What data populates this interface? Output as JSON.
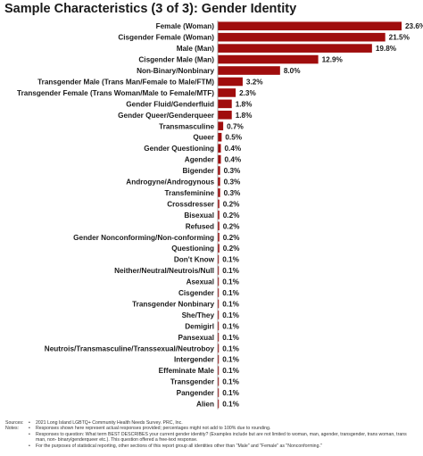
{
  "chart_data": {
    "type": "bar",
    "orientation": "horizontal",
    "title": "Sample Characteristics (3 of 3): Gender Identity",
    "categories": [
      "Female (Woman)",
      "Cisgender Female (Woman)",
      "Male (Man)",
      "Cisgender Male (Man)",
      "Non-Binary/Nonbinary",
      "Transgender Male (Trans Man/Female to Male/FTM)",
      "Transgender Female (Trans Woman/Male to Female/MTF)",
      "Gender Fluid/Genderfluid",
      "Gender Queer/Genderqueer",
      "Transmasculine",
      "Queer",
      "Gender Questioning",
      "Agender",
      "Bigender",
      "Androgyne/Androgynous",
      "Transfeminine",
      "Crossdresser",
      "Bisexual",
      "Refused",
      "Gender Nonconforming/Non-conforming",
      "Questioning",
      "Don't Know",
      "Neither/Neutral/Neutrois/Null",
      "Asexual",
      "Cisgender",
      "Transgender Nonbinary",
      "She/They",
      "Demigirl",
      "Pansexual",
      "Neutrois/Transmasculine/Transsexual/Neutroboy",
      "Intergender",
      "Effeminate Male",
      "Transgender",
      "Pangender",
      "Alien"
    ],
    "values": [
      23.6,
      21.5,
      19.8,
      12.9,
      8.0,
      3.2,
      2.3,
      1.8,
      1.8,
      0.7,
      0.5,
      0.4,
      0.4,
      0.3,
      0.3,
      0.3,
      0.2,
      0.2,
      0.2,
      0.2,
      0.2,
      0.1,
      0.1,
      0.1,
      0.1,
      0.1,
      0.1,
      0.1,
      0.1,
      0.1,
      0.1,
      0.1,
      0.1,
      0.1,
      0.1
    ],
    "value_labels": [
      "23.6%",
      "21.5%",
      "19.8%",
      "12.9%",
      "8.0%",
      "3.2%",
      "2.3%",
      "1.8%",
      "1.8%",
      "0.7%",
      "0.5%",
      "0.4%",
      "0.4%",
      "0.3%",
      "0.3%",
      "0.3%",
      "0.2%",
      "0.2%",
      "0.2%",
      "0.2%",
      "0.2%",
      "0.1%",
      "0.1%",
      "0.1%",
      "0.1%",
      "0.1%",
      "0.1%",
      "0.1%",
      "0.1%",
      "0.1%",
      "0.1%",
      "0.1%",
      "0.1%",
      "0.1%",
      "0.1%"
    ],
    "unit": "%",
    "bar_color": "#a00d0d",
    "axis_line_color": "#999999",
    "xlim": [
      0,
      23.6
    ],
    "grid": false,
    "legend": false
  },
  "notes": {
    "sources_key": "Sources:",
    "sources": "2021 Long Island LGBTQ+ Community Health Needs Survey. PRC, Inc.",
    "notes_key": "Notes:",
    "bullets": [
      "Responses shown here represent actual responses provided; percentages might not add to 100% due to rounding.",
      "Responses to question: What term BEST DESCRIBES your current gender identity? (Examples include but are not limited to woman, man, agender, transgender, trans woman, trans man, non- binary/genderqueer etc.). This question offered a free-text response.",
      "For the purposes of statistical reporting, other sections of this report group all identities other than \"Male\" and \"Female\" as \"Nonconforming.\""
    ]
  }
}
